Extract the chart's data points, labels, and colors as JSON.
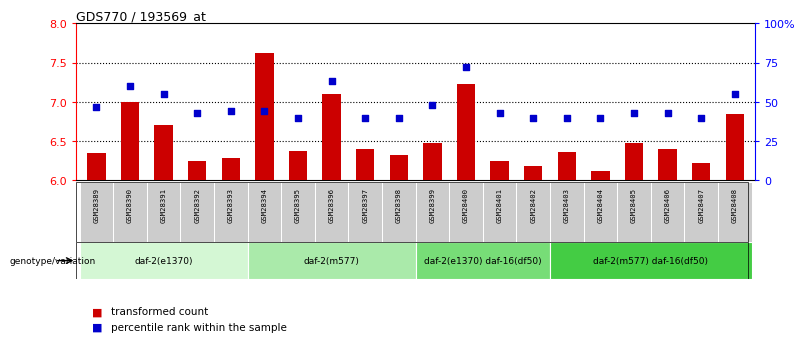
{
  "title": "GDS770 / 193569_at",
  "samples": [
    "GSM28389",
    "GSM28390",
    "GSM28391",
    "GSM28392",
    "GSM28393",
    "GSM28394",
    "GSM28395",
    "GSM28396",
    "GSM28397",
    "GSM28398",
    "GSM28399",
    "GSM28400",
    "GSM28401",
    "GSM28402",
    "GSM28403",
    "GSM28404",
    "GSM28405",
    "GSM28406",
    "GSM28407",
    "GSM28408"
  ],
  "bar_values": [
    6.35,
    7.0,
    6.7,
    6.25,
    6.28,
    7.62,
    6.38,
    7.1,
    6.4,
    6.32,
    6.47,
    7.23,
    6.25,
    6.18,
    6.36,
    6.12,
    6.47,
    6.4,
    6.22,
    6.85
  ],
  "dot_percentiles": [
    47,
    60,
    55,
    43,
    44,
    44,
    40,
    63,
    40,
    40,
    48,
    72,
    43,
    40,
    40,
    40,
    43,
    43,
    40,
    55
  ],
  "ylim_left": [
    6.0,
    8.0
  ],
  "ylim_right": [
    0,
    100
  ],
  "yticks_left": [
    6.0,
    6.5,
    7.0,
    7.5,
    8.0
  ],
  "yticks_right": [
    0,
    25,
    50,
    75,
    100
  ],
  "ytick_right_labels": [
    "0",
    "25",
    "50",
    "75",
    "100%"
  ],
  "hlines": [
    6.5,
    7.0,
    7.5
  ],
  "bar_color": "#cc0000",
  "dot_color": "#0000cc",
  "bar_bottom": 6.0,
  "groups": [
    {
      "label": "daf-2(e1370)",
      "start": 0,
      "end": 5,
      "color": "#d4f7d4"
    },
    {
      "label": "daf-2(m577)",
      "start": 5,
      "end": 10,
      "color": "#aaeaaa"
    },
    {
      "label": "daf-2(e1370) daf-16(df50)",
      "start": 10,
      "end": 14,
      "color": "#77dd77"
    },
    {
      "label": "daf-2(m577) daf-16(df50)",
      "start": 14,
      "end": 20,
      "color": "#44cc44"
    }
  ],
  "legend_bar_label": "transformed count",
  "legend_dot_label": "percentile rank within the sample",
  "genotype_label": "genotype/variation"
}
